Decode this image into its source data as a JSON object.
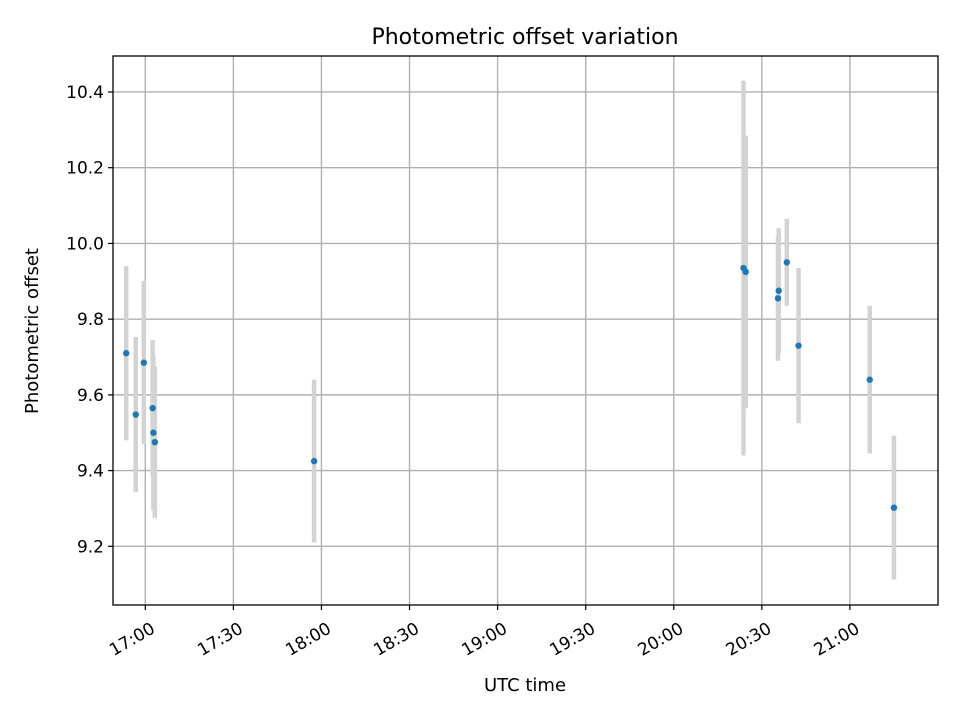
{
  "chart_data": {
    "type": "scatter",
    "title": "Photometric offset variation",
    "xlabel": "UTC time",
    "ylabel": "Photometric offset",
    "x_is_time": true,
    "xlim": [
      "16:49",
      "21:30"
    ],
    "ylim": [
      9.045,
      10.495
    ],
    "grid": true,
    "x_ticks": [
      "17:00",
      "17:30",
      "18:00",
      "18:30",
      "19:00",
      "19:30",
      "20:00",
      "20:30",
      "21:00"
    ],
    "y_ticks": [
      9.2,
      9.4,
      9.6,
      9.8,
      10.0,
      10.2,
      10.4
    ],
    "y_tick_labels": [
      "9.2",
      "9.4",
      "9.6",
      "9.8",
      "10.0",
      "10.2",
      "10.4"
    ],
    "colors": {
      "marker": "#1f77b4",
      "errorbar": "#d3d3d3"
    },
    "series": [
      {
        "points": [
          {
            "x": "16:53:30",
            "y": 9.71,
            "yerr": 0.23
          },
          {
            "x": "16:56:45",
            "y": 9.548,
            "yerr": 0.205
          },
          {
            "x": "16:59:30",
            "y": 9.685,
            "yerr": 0.215
          },
          {
            "x": "17:02:30",
            "y": 9.565,
            "yerr": 0.18
          },
          {
            "x": "17:02:45",
            "y": 9.5,
            "yerr": 0.205
          },
          {
            "x": "17:03:15",
            "y": 9.475,
            "yerr": 0.2
          },
          {
            "x": "17:57:30",
            "y": 9.425,
            "yerr": 0.215
          },
          {
            "x": "20:23:45",
            "y": 9.935,
            "yerr": 0.495
          },
          {
            "x": "20:24:30",
            "y": 9.925,
            "yerr": 0.36
          },
          {
            "x": "20:35:30",
            "y": 9.855,
            "yerr": 0.165
          },
          {
            "x": "20:35:45",
            "y": 9.875,
            "yerr": 0.165
          },
          {
            "x": "20:38:30",
            "y": 9.95,
            "yerr": 0.115
          },
          {
            "x": "20:42:30",
            "y": 9.73,
            "yerr": 0.205
          },
          {
            "x": "21:06:45",
            "y": 9.64,
            "yerr": 0.195
          },
          {
            "x": "21:15:00",
            "y": 9.302,
            "yerr": 0.19
          }
        ]
      }
    ]
  }
}
